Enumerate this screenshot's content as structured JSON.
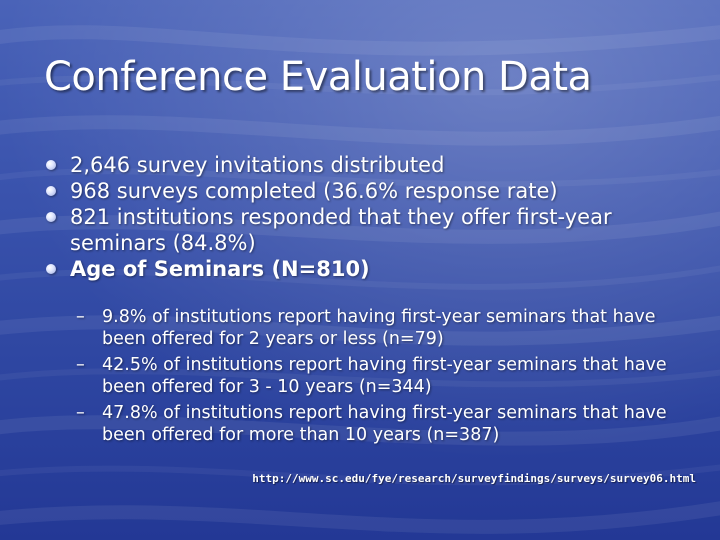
{
  "slide": {
    "title": "Conference Evaluation Data",
    "bullets": [
      {
        "text": "2,646 survey invitations distributed"
      },
      {
        "text": "968 surveys completed (36.6% response rate)"
      },
      {
        "text": "821 institutions responded that they offer first-year seminars (84.8%)"
      },
      {
        "text": "Age of Seminars (N=810)"
      }
    ],
    "sub_bullets": [
      {
        "text": "9.8% of institutions report having first-year seminars that have been offered for 2 years or less (n=79)"
      },
      {
        "text": "42.5% of institutions report having first-year seminars that have been offered for 3 - 10 years (n=344)"
      },
      {
        "text": "47.8% of institutions report having first-year seminars that have been offered for more than 10 years (n=387)"
      }
    ],
    "dash_glyph": "–",
    "footer_url": "http://www.sc.edu/fye/research/surveyfindings/surveys/survey06.html"
  },
  "colors": {
    "background": "#3a53ad",
    "text": "#ffffff"
  }
}
